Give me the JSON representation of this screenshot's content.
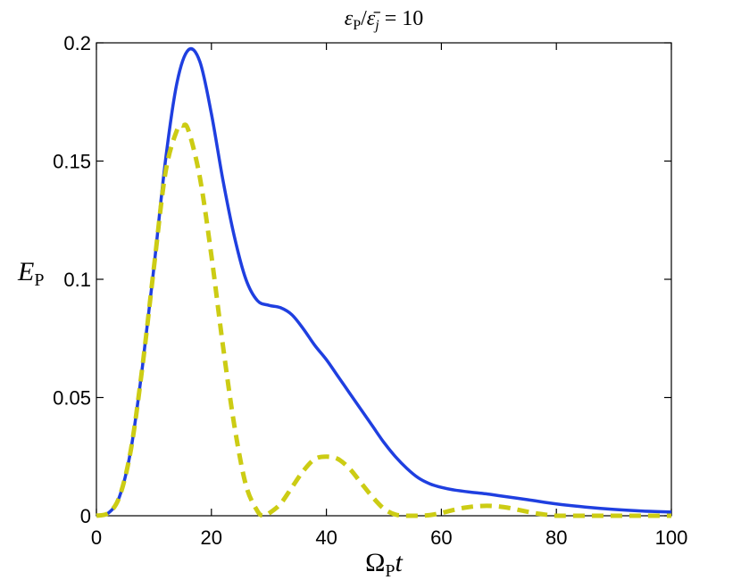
{
  "chart_data": {
    "type": "line",
    "title": "εP/ε̄j = 10",
    "title_parts": {
      "a": "ε",
      "a_sub": "P",
      "slash": "/",
      "b": "ε̄",
      "b_sub": "j",
      "rest": " = 10"
    },
    "xlabel": "ΩPt",
    "xlabel_parts": {
      "main": "Ω",
      "sub": "P",
      "tail": "t"
    },
    "ylabel": "EP",
    "ylabel_parts": {
      "main": "E",
      "sub": "P"
    },
    "xlim": [
      0,
      100
    ],
    "ylim": [
      0,
      0.2
    ],
    "xticks": [
      0,
      20,
      40,
      60,
      80,
      100
    ],
    "xtick_labels": [
      "0",
      "20",
      "40",
      "60",
      "80",
      "100"
    ],
    "yticks": [
      0,
      0.05,
      0.1,
      0.15,
      0.2
    ],
    "ytick_labels": [
      "0",
      "0.05",
      "0.1",
      "0.15",
      "0.2"
    ],
    "grid": false,
    "legend": false,
    "series": [
      {
        "style": "solid",
        "color": "#1f3fe0",
        "x": [
          0,
          2,
          4,
          6,
          8,
          10,
          12,
          14,
          16,
          18,
          20,
          22,
          24,
          26,
          28,
          30,
          32,
          34,
          36,
          38,
          40,
          42,
          44,
          46,
          48,
          50,
          52,
          54,
          56,
          58,
          60,
          62,
          65,
          68,
          70,
          75,
          80,
          85,
          90,
          95,
          100
        ],
        "y": [
          0,
          0.001,
          0.008,
          0.028,
          0.063,
          0.105,
          0.15,
          0.183,
          0.197,
          0.192,
          0.17,
          0.142,
          0.118,
          0.1,
          0.091,
          0.089,
          0.088,
          0.085,
          0.079,
          0.072,
          0.066,
          0.059,
          0.052,
          0.045,
          0.038,
          0.031,
          0.025,
          0.02,
          0.016,
          0.0135,
          0.012,
          0.011,
          0.01,
          0.0092,
          0.0085,
          0.0068,
          0.005,
          0.0037,
          0.0027,
          0.002,
          0.0016
        ]
      },
      {
        "style": "dashed",
        "color": "#cccc14",
        "x": [
          0,
          2,
          4,
          6,
          8,
          10,
          12,
          14,
          15,
          16,
          18,
          20,
          22,
          24,
          26,
          28,
          29,
          30,
          32,
          34,
          36,
          38,
          40,
          42,
          44,
          46,
          48,
          50,
          52,
          54,
          56,
          58,
          60,
          62,
          64,
          66,
          68,
          70,
          72,
          74,
          76,
          78,
          80,
          85,
          90,
          95,
          100
        ],
        "y": [
          0,
          0.001,
          0.008,
          0.028,
          0.063,
          0.105,
          0.145,
          0.163,
          0.165,
          0.163,
          0.143,
          0.11,
          0.072,
          0.038,
          0.013,
          0.002,
          0.0,
          0.001,
          0.005,
          0.012,
          0.019,
          0.024,
          0.025,
          0.024,
          0.02,
          0.014,
          0.008,
          0.003,
          0.0005,
          0.0,
          0.0,
          0.0003,
          0.0012,
          0.0024,
          0.0034,
          0.004,
          0.0042,
          0.0039,
          0.0032,
          0.0022,
          0.0012,
          0.0005,
          0.0,
          0.0,
          0.0,
          0.0,
          0.0
        ]
      }
    ]
  }
}
